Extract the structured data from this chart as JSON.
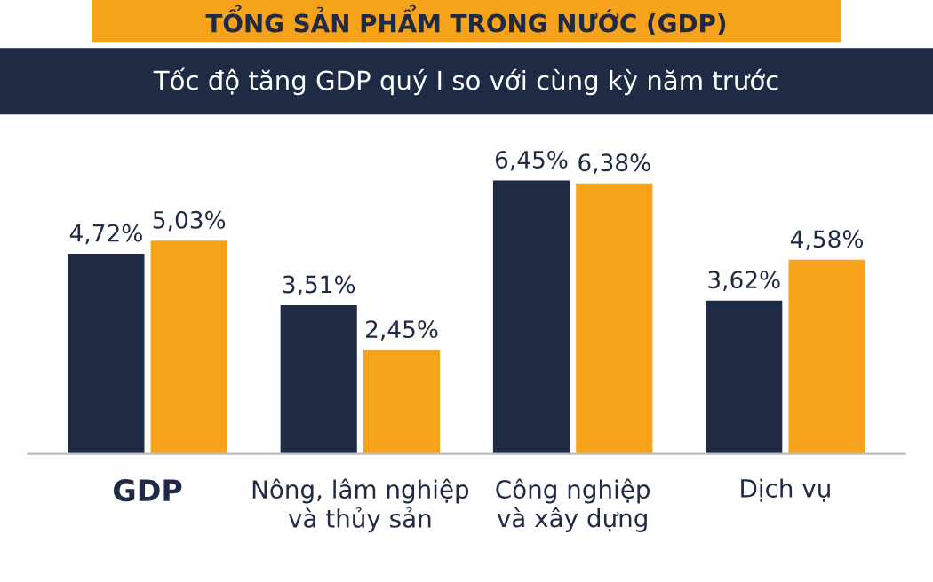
{
  "chart_data": {
    "type": "bar",
    "title": "TỔNG SẢN PHẨM TRONG NƯỚC (GDP)",
    "subtitle": "Tốc độ tăng GDP quý I so với cùng kỳ năm trước",
    "categories": [
      "GDP",
      "Nông, lâm nghiệp\nvà thủy sản",
      "Công nghiệp\nvà xây dựng",
      "Dịch vụ"
    ],
    "series": [
      {
        "color": "#1f2b45",
        "values": [
          4.72,
          3.51,
          6.45,
          3.62
        ],
        "value_labels": [
          "4,72%",
          "3,51%",
          "6,45%",
          "3,62%"
        ]
      },
      {
        "color": "#f7a21b",
        "values": [
          5.03,
          2.45,
          6.38,
          4.58
        ],
        "value_labels": [
          "5,03%",
          "2,45%",
          "6,38%",
          "4,58%"
        ]
      }
    ],
    "grid": false,
    "legend": false
  }
}
